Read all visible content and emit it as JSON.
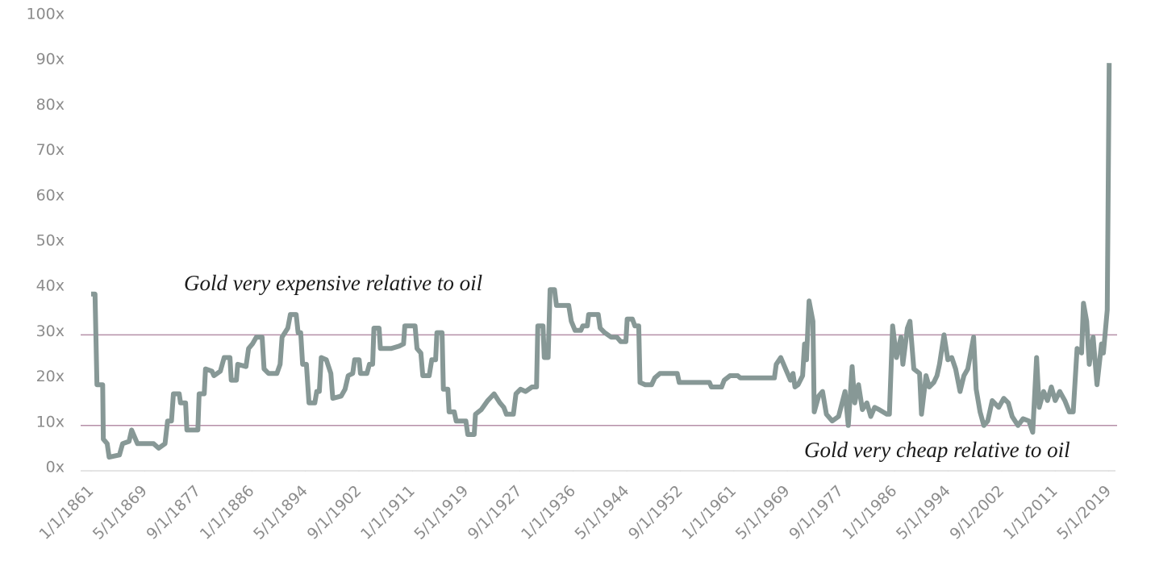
{
  "chart_data": {
    "type": "line",
    "annotations": [
      "Gold very expensive relative to oil",
      "Gold very cheap relative to oil"
    ],
    "reference_lines": [
      30,
      10
    ],
    "reference_color": "#b58fa8",
    "color": "#879896",
    "xlim": [
      1861,
      2020
    ],
    "ylim": [
      0,
      100
    ],
    "xticks": [
      {
        "value": 1861,
        "label": "1/1/1861"
      },
      {
        "value": 1869.33,
        "label": "5/1/1869"
      },
      {
        "value": 1877.67,
        "label": "9/1/1877"
      },
      {
        "value": 1886,
        "label": "1/1/1886"
      },
      {
        "value": 1894.33,
        "label": "5/1/1894"
      },
      {
        "value": 1902.67,
        "label": "9/1/1902"
      },
      {
        "value": 1911,
        "label": "1/1/1911"
      },
      {
        "value": 1919.33,
        "label": "5/1/1919"
      },
      {
        "value": 1927.67,
        "label": "9/1/1927"
      },
      {
        "value": 1936,
        "label": "1/1/1936"
      },
      {
        "value": 1944.33,
        "label": "5/1/1944"
      },
      {
        "value": 1952.67,
        "label": "9/1/1952"
      },
      {
        "value": 1961,
        "label": "1/1/1961"
      },
      {
        "value": 1969.33,
        "label": "5/1/1969"
      },
      {
        "value": 1977.67,
        "label": "9/1/1977"
      },
      {
        "value": 1986,
        "label": "1/1/1986"
      },
      {
        "value": 1994.33,
        "label": "5/1/1994"
      },
      {
        "value": 2002.67,
        "label": "9/1/2002"
      },
      {
        "value": 2011,
        "label": "1/1/2011"
      },
      {
        "value": 2019.33,
        "label": "5/1/2019"
      }
    ],
    "yticks": [
      {
        "value": 0,
        "label": "0x"
      },
      {
        "value": 10,
        "label": "10x"
      },
      {
        "value": 20,
        "label": "20x"
      },
      {
        "value": 30,
        "label": "30x"
      },
      {
        "value": 40,
        "label": "40x"
      },
      {
        "value": 50,
        "label": "50x"
      },
      {
        "value": 60,
        "label": "60x"
      },
      {
        "value": 70,
        "label": "70x"
      },
      {
        "value": 80,
        "label": "80x"
      },
      {
        "value": 90,
        "label": "90x"
      },
      {
        "value": 100,
        "label": "100x"
      }
    ],
    "x": [
      1861.0,
      1861.6,
      1861.9,
      1862.8,
      1862.9,
      1863.5,
      1863.8,
      1865.4,
      1865.9,
      1866.9,
      1867.3,
      1868.2,
      1870.7,
      1871.5,
      1872.5,
      1872.9,
      1873.5,
      1873.8,
      1874.7,
      1874.9,
      1875.7,
      1875.9,
      1877.6,
      1877.8,
      1878.6,
      1878.8,
      1879.8,
      1880.1,
      1881.1,
      1881.7,
      1882.6,
      1882.8,
      1883.6,
      1883.8,
      1885.1,
      1885.5,
      1886.1,
      1886.7,
      1887.6,
      1887.9,
      1888.6,
      1889.9,
      1890.4,
      1890.7,
      1891.6,
      1892.0,
      1892.9,
      1893.2,
      1893.6,
      1893.9,
      1894.5,
      1894.9,
      1895.8,
      1896.1,
      1896.5,
      1896.8,
      1897.6,
      1898.3,
      1898.6,
      1899.9,
      1900.5,
      1901.0,
      1901.7,
      1902.0,
      1902.7,
      1902.9,
      1903.9,
      1904.3,
      1904.8,
      1905.0,
      1905.8,
      1906.0,
      1907.7,
      1908.9,
      1909.6,
      1909.8,
      1911.4,
      1911.7,
      1912.3,
      1912.6,
      1913.6,
      1914.0,
      1914.6,
      1914.8,
      1915.6,
      1915.8,
      1916.5,
      1916.7,
      1917.5,
      1917.8,
      1919.3,
      1919.6,
      1920.6,
      1920.8,
      1921.7,
      1922.7,
      1923.7,
      1924.6,
      1925.2,
      1925.6,
      1926.7,
      1927.1,
      1927.8,
      1928.6,
      1929.6,
      1930.3,
      1930.5,
      1931.3,
      1931.5,
      1932.1,
      1932.4,
      1933.1,
      1933.4,
      1934.0,
      1935.3,
      1935.7,
      1936.3,
      1937.2,
      1937.5,
      1938.2,
      1938.4,
      1939.9,
      1940.2,
      1940.9,
      1941.9,
      1942.8,
      1943.4,
      1944.2,
      1944.4,
      1945.2,
      1945.6,
      1946.2,
      1946.4,
      1947.2,
      1948.2,
      1948.7,
      1949.5,
      1952.2,
      1952.5,
      1957.2,
      1957.5,
      1959.1,
      1959.5,
      1960.4,
      1961.6,
      1962.0,
      1967.3,
      1967.6,
      1968.3,
      1969.2,
      1969.8,
      1970.2,
      1970.5,
      1971.0,
      1971.7,
      1972.0,
      1972.3,
      1972.7,
      1973.3,
      1973.5,
      1974.2,
      1974.8,
      1975.4,
      1976.3,
      1977.3,
      1978.3,
      1978.8,
      1979.4,
      1979.8,
      1980.4,
      1981.0,
      1981.7,
      1982.3,
      1982.9,
      1983.6,
      1984.8,
      1985.2,
      1985.7,
      1986.3,
      1987.0,
      1987.3,
      1988.0,
      1988.4,
      1989.0,
      1989.9,
      1990.2,
      1990.9,
      1991.4,
      1992.1,
      1992.6,
      1993.0,
      1993.7,
      1994.3,
      1994.9,
      1995.5,
      1996.2,
      1996.8,
      1997.4,
      1998.3,
      1998.7,
      1999.3,
      1999.9,
      2000.5,
      2001.2,
      2002.2,
      2003.0,
      2003.7,
      2004.3,
      2005.2,
      2006.0,
      2006.9,
      2007.5,
      2008.1,
      2008.5,
      2009.2,
      2009.8,
      2010.4,
      2011.0,
      2011.7,
      2012.5,
      2013.2,
      2013.8,
      2014.4,
      2015.1,
      2015.4,
      2015.9,
      2016.3,
      2016.9,
      2017.5,
      2018.2,
      2018.5,
      2019.1,
      2019.4
    ],
    "values": [
      39,
      39,
      19,
      19,
      7,
      6,
      3,
      3.5,
      6,
      6.5,
      9,
      6,
      6,
      5,
      6,
      11,
      11,
      17,
      17,
      15,
      15,
      9,
      9,
      17,
      17,
      22.5,
      22,
      21,
      22,
      25,
      25,
      20,
      20,
      23.5,
      23,
      27,
      28,
      29.5,
      29.5,
      22.5,
      21.5,
      21.5,
      23.5,
      29.5,
      31.5,
      34.5,
      34.5,
      30.5,
      30.5,
      23.5,
      23.5,
      15,
      15,
      17.5,
      17.5,
      25,
      24.5,
      21.5,
      16,
      16.5,
      18,
      21,
      21.5,
      24.5,
      24.5,
      21.5,
      21.5,
      23.5,
      23.5,
      31.5,
      31.5,
      27,
      27,
      27.5,
      28,
      32,
      32,
      27,
      26,
      21,
      21,
      24.5,
      24.5,
      30.5,
      30.5,
      18,
      18,
      13,
      13,
      11,
      11,
      8,
      8,
      12.5,
      13.5,
      15.5,
      17,
      15,
      14,
      12.5,
      12.5,
      17,
      18,
      17.5,
      18.5,
      18.5,
      32,
      32,
      25,
      25,
      40,
      40,
      36.5,
      36.5,
      36.5,
      33,
      31,
      31,
      32,
      32,
      34.5,
      34.5,
      31.5,
      30.5,
      29.5,
      29.5,
      28.5,
      28.5,
      33.5,
      33.5,
      32,
      32,
      19.5,
      19,
      19,
      20.5,
      21.5,
      21.5,
      19.5,
      19.5,
      18.5,
      18.5,
      20,
      21,
      21,
      20.5,
      20.5,
      23.5,
      25,
      22,
      20,
      21.5,
      18.5,
      19,
      21,
      28,
      24.5,
      37.5,
      33,
      13,
      16.5,
      17.5,
      12.5,
      11,
      12,
      17.5,
      10,
      23,
      15,
      19,
      13.5,
      15,
      12,
      14,
      13.5,
      12.5,
      12.5,
      32,
      25,
      29.5,
      23.5,
      31.5,
      33,
      22.5,
      21.5,
      12.5,
      21,
      18.5,
      19.5,
      21,
      23.5,
      30,
      24.5,
      25,
      22.5,
      17.5,
      21,
      22.5,
      29.5,
      18,
      13,
      10,
      11,
      15.5,
      14,
      16,
      15,
      12,
      10,
      11.5,
      11,
      8.5,
      25,
      14,
      17.5,
      15.5,
      18.5,
      15.5,
      17.5,
      15.5,
      13,
      13,
      27,
      26,
      37,
      33,
      23.5,
      29.5,
      19,
      28,
      26,
      35.5,
      90
    ]
  }
}
